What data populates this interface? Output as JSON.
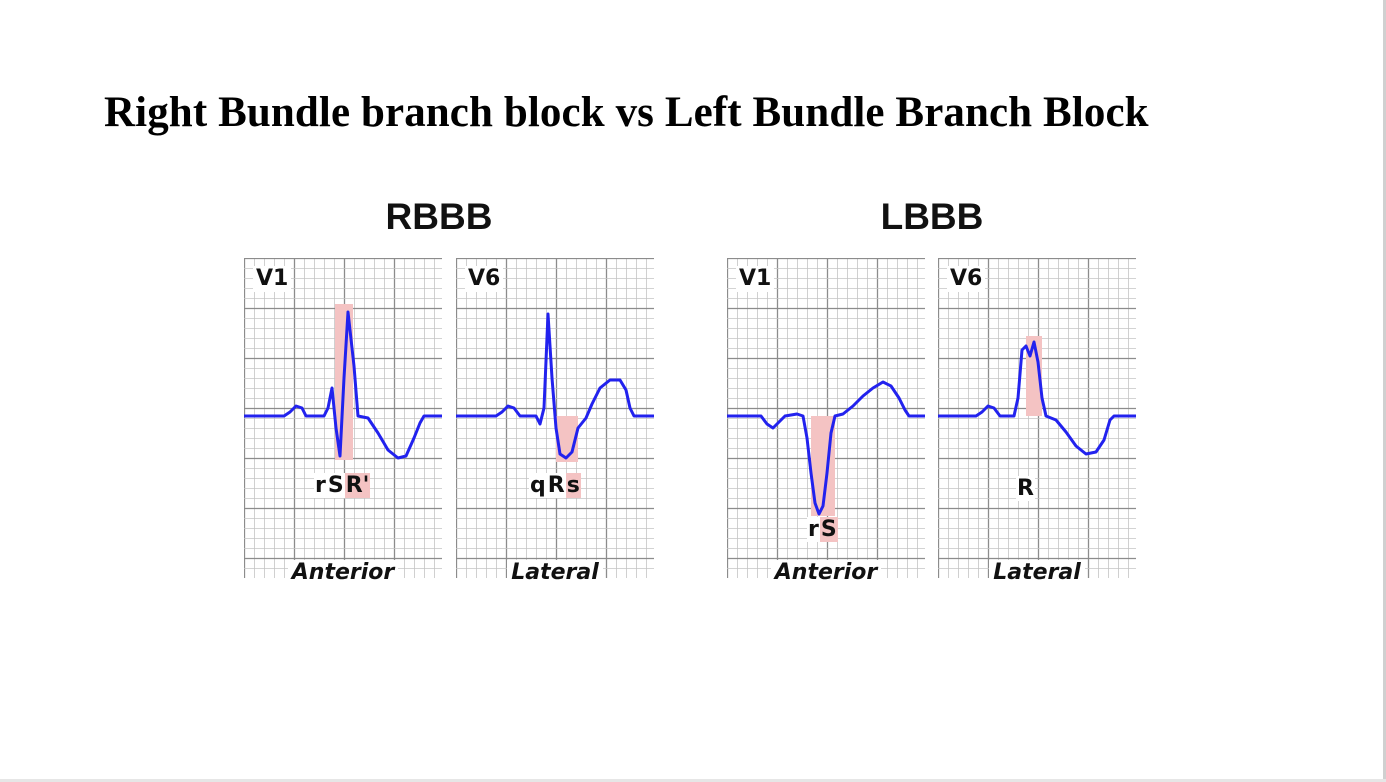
{
  "slide": {
    "title": "Right Bundle branch block vs Left Bundle Branch Block"
  },
  "groups": [
    {
      "title": "RBBB",
      "panels": [
        {
          "lead": "V1",
          "pattern": [
            "r",
            "S",
            "R'"
          ],
          "highlight": [
            false,
            false,
            true
          ],
          "region": "Anterior"
        },
        {
          "lead": "V6",
          "pattern": [
            "q",
            "R",
            "s"
          ],
          "highlight": [
            false,
            false,
            true
          ],
          "region": "Lateral"
        }
      ]
    },
    {
      "title": "LBBB",
      "panels": [
        {
          "lead": "V1",
          "pattern": [
            "r",
            "S"
          ],
          "highlight": [
            false,
            true
          ],
          "region": "Anterior"
        },
        {
          "lead": "V6",
          "pattern": [
            "R"
          ],
          "highlight": [
            false
          ],
          "region": "Lateral"
        }
      ]
    }
  ],
  "colors": {
    "trace": "#2222ee",
    "highlight": "#f4c3c3",
    "grid_major": "#8c8c8c",
    "grid_minor": "#c4c4c4"
  }
}
